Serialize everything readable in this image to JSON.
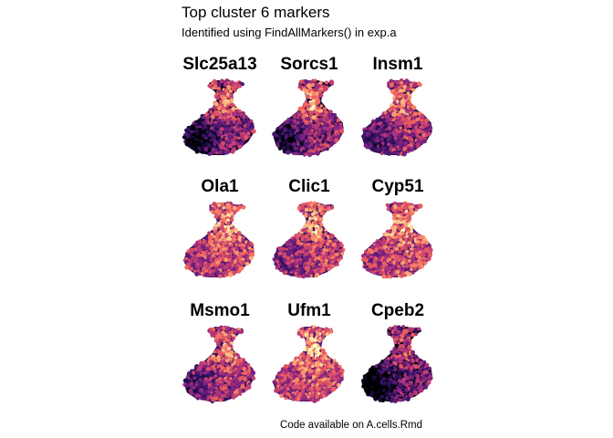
{
  "figure": {
    "title": "Top cluster 6 markers",
    "subtitle": "Identified using FindAllMarkers() in exp.a",
    "caption": "Code available on A.cells.Rmd"
  },
  "colors": {
    "palette": [
      "#000004",
      "#2c115f",
      "#721f81",
      "#b73779",
      "#f1605d",
      "#feb078",
      "#fcfdbf"
    ],
    "background": "#ffffff"
  },
  "chart_data": {
    "type": "scatter",
    "description_of_encoding": "",
    "layout": "3x3 facet grid, one embedding panel per gene, points colored by expression (magma scale, dark = low, light = high)",
    "axes": "hidden",
    "grid": false,
    "legend": "none",
    "panels": [
      {
        "gene": "Slc25a13",
        "mean_level": 0.42,
        "dark_lower_left": 0.55,
        "hot_neck": 0.45
      },
      {
        "gene": "Sorcs1",
        "mean_level": 0.45,
        "dark_lower_left": 0.5,
        "hot_neck": 0.5
      },
      {
        "gene": "Insm1",
        "mean_level": 0.5,
        "dark_lower_left": 0.35,
        "hot_neck": 0.3
      },
      {
        "gene": "Ola1",
        "mean_level": 0.6,
        "dark_lower_left": 0.15,
        "hot_neck": 0.25
      },
      {
        "gene": "Clic1",
        "mean_level": 0.55,
        "dark_lower_left": 0.2,
        "hot_neck": 0.35
      },
      {
        "gene": "Cyp51",
        "mean_level": 0.6,
        "dark_lower_left": 0.15,
        "hot_neck": 0.3
      },
      {
        "gene": "Msmo1",
        "mean_level": 0.52,
        "dark_lower_left": 0.3,
        "hot_neck": 0.3
      },
      {
        "gene": "Ufm1",
        "mean_level": 0.62,
        "dark_lower_left": 0.15,
        "hot_neck": 0.35
      },
      {
        "gene": "Cpeb2",
        "mean_level": 0.35,
        "dark_lower_left": 0.6,
        "hot_neck": 0.3
      }
    ]
  }
}
